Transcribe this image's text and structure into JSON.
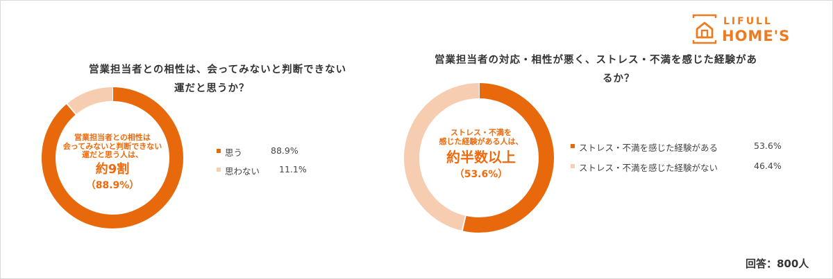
{
  "brand": {
    "line1": "LIFULL",
    "line2": "HOME'S",
    "color": "#EE7B21"
  },
  "colors": {
    "primary": "#E8690B",
    "secondary": "#F6CDB0",
    "label": "#EE6A0C"
  },
  "chart_data": [
    {
      "type": "pie",
      "title": [
        "営業担当者との相性は、会ってみないと判断できない",
        "運だと思うか？"
      ],
      "labels": [
        "思う",
        "思わない"
      ],
      "values": [
        88.9,
        11.1
      ],
      "value_labels": [
        "88.9%",
        "11.1%"
      ],
      "center": {
        "lines": [
          "営業担当者との相性は",
          "会ってみないと判断できない",
          "運だと思う人は、"
        ],
        "big": "約9割",
        "pct": "（88.9%）"
      }
    },
    {
      "type": "pie",
      "title": [
        "営業担当者の対応・相性が悪く、ストレス・不満を感じた経験があ",
        "るか？"
      ],
      "labels": [
        "ストレス・不満を感じた経験がある",
        "ストレス・不満を感じた経験がない"
      ],
      "values": [
        53.6,
        46.4
      ],
      "value_labels": [
        "53.6%",
        "46.4%"
      ],
      "center": {
        "lines": [
          "ストレス・不満を",
          "感じた経験がある人は、"
        ],
        "big": "約半数以上",
        "pct": "（53.6%）"
      }
    }
  ],
  "footnote": "回答：800人"
}
